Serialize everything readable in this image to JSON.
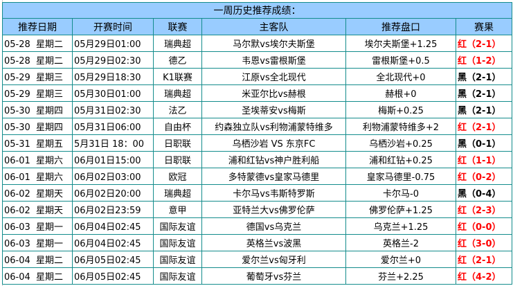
{
  "title": "一周历史推荐成绩：",
  "headers": [
    "推荐日期",
    "开赛时间",
    "联赛",
    "主客队",
    "推荐盘口",
    "赛果"
  ],
  "colors": {
    "header_bg": "#99ccff",
    "border": "#138c8c",
    "red": "#ff0000",
    "black": "#000000"
  },
  "rows": [
    {
      "date": "05-28  星期二",
      "time": "05月29日01:00",
      "league": "瑞典超",
      "match": "马尔默vs埃尔夫斯堡",
      "pick": "埃尔夫斯堡+1.25",
      "result": "红（2-1）",
      "color": "red"
    },
    {
      "date": "05-28  星期二",
      "time": "05月29日02:30",
      "league": "德乙",
      "match": "韦恩vs雷根斯堡",
      "pick": "雷根斯堡+0.5",
      "result": "红（1-2）",
      "color": "red"
    },
    {
      "date": "05-29  星期三",
      "time": "05月29日18:30",
      "league": "K1联赛",
      "match": "江原vs全北现代",
      "pick": "全北现代+0",
      "result": "黑（2-1）",
      "color": "black"
    },
    {
      "date": "05-29  星期三",
      "time": "05月30日01:00",
      "league": "瑞典超",
      "match": "米亚尔比vs赫根",
      "pick": "赫根+0",
      "result": "黑（2-1）",
      "color": "black"
    },
    {
      "date": "05-30  星期四",
      "time": "05月31日02:30",
      "league": "法乙",
      "match": "圣埃蒂安vs梅斯",
      "pick": "梅斯+0.25",
      "result": "黑（2-1）",
      "color": "black"
    },
    {
      "date": "05-30  星期四",
      "time": "05月31日06:00",
      "league": "自由杯",
      "match": "约森独立队vs利物浦蒙特维多",
      "pick": "利物浦蒙特维多+2",
      "result": "红（2-1）",
      "color": "red"
    },
    {
      "date": "05-31  星期五",
      "time": "5月31日 18：00",
      "league": "日职联",
      "match": "乌栖沙岩 VS 东京FC",
      "pick": "乌栖沙岩+0.25",
      "result": "黑（0-1）",
      "color": "black"
    },
    {
      "date": "06-01  星期六",
      "time": "06月01日15:00",
      "league": "日职联",
      "match": "浦和红钻vs神户胜利船",
      "pick": "浦和红钻+0.25",
      "result": "红（1-1）",
      "color": "red"
    },
    {
      "date": "06-01  星期六",
      "time": "06月02日03:00",
      "league": "欧冠",
      "match": "多特蒙德vs皇家马德里",
      "pick": "皇家马德里-0.75",
      "result": "红（0-2）",
      "color": "red"
    },
    {
      "date": "06-02  星期天",
      "time": "06月02日20:00",
      "league": "瑞典超",
      "match": "卡尔马vs韦斯特罗斯",
      "pick": "卡尔马-0",
      "result": "黑（0-4）",
      "color": "black"
    },
    {
      "date": "06-02  星期天",
      "time": "06月02日23:59",
      "league": "意甲",
      "match": "亚特兰大vs佛罗伦萨",
      "pick": "佛罗伦萨+1.25",
      "result": "红（2-3）",
      "color": "red"
    },
    {
      "date": "06-03  星期一",
      "time": "06月04日02:45",
      "league": "国际友谊",
      "match": "德国vs乌克兰",
      "pick": "乌克兰+1.25",
      "result": "红（0-0）",
      "color": "red"
    },
    {
      "date": "06-03  星期一",
      "time": "06月04日02:45",
      "league": "国际友谊",
      "match": "英格兰vs波黑",
      "pick": "英格兰-2",
      "result": "红（3-0）",
      "color": "red"
    },
    {
      "date": "06-04  星期二",
      "time": "06月05日02:45",
      "league": "国际友谊",
      "match": "爱尔兰vs匈牙利",
      "pick": "爱尔兰+0",
      "result": "红（2-1）",
      "color": "red"
    },
    {
      "date": "06-04  星期二",
      "time": "06月05日02:45",
      "league": "国际友谊",
      "match": "葡萄牙vs芬兰",
      "pick": "芬兰+2.25",
      "result": "红（4-2）",
      "color": "red"
    }
  ]
}
